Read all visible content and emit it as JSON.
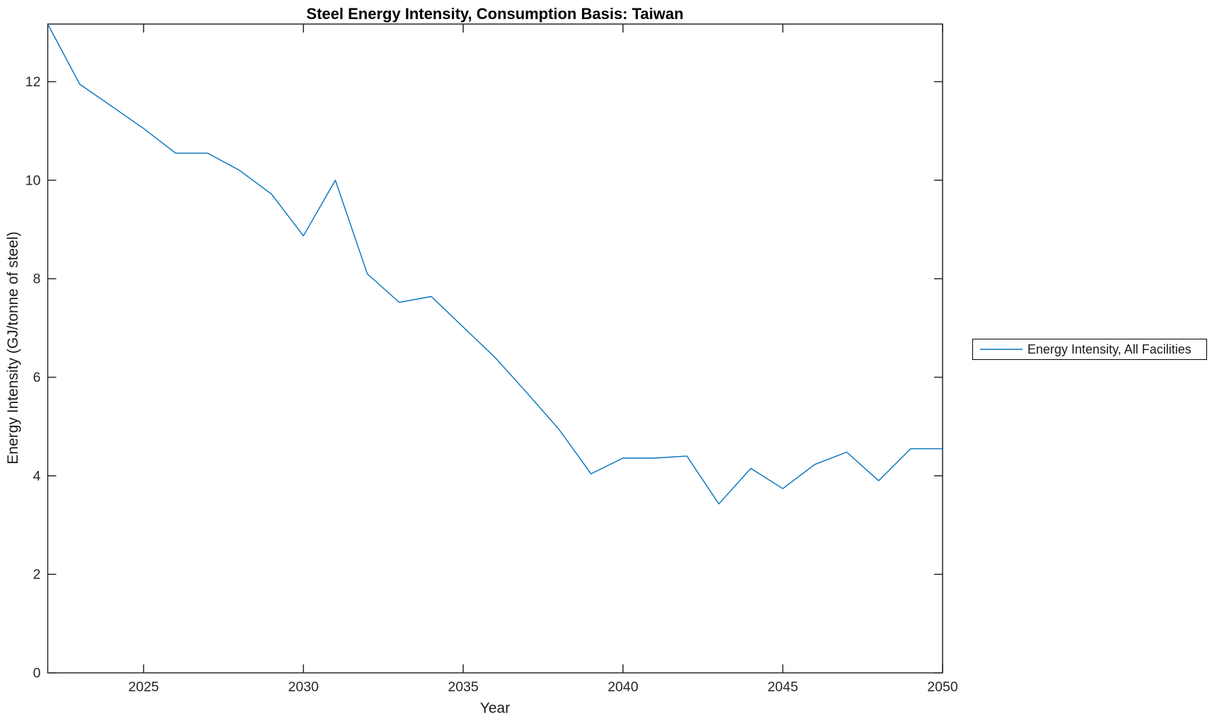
{
  "figure": {
    "background": "#ffffff"
  },
  "chart_data": {
    "type": "line",
    "title": "Steel Energy Intensity, Consumption Basis: Taiwan",
    "xlabel": "Year",
    "ylabel": "Energy Intensity (GJ/tonne of steel)",
    "grid": false,
    "box": true,
    "tick_direction": "in",
    "legend_position": "outside-right",
    "legend_entries": [
      "Energy Intensity, All Facilities"
    ],
    "xlim": [
      2022,
      2050
    ],
    "ylim": [
      0,
      13.17
    ],
    "xticks": [
      2025,
      2030,
      2035,
      2040,
      2045,
      2050
    ],
    "yticks": [
      0,
      2,
      4,
      6,
      8,
      10,
      12
    ],
    "x": [
      2022,
      2023,
      2024,
      2025,
      2026,
      2027,
      2028,
      2029,
      2030,
      2031,
      2032,
      2033,
      2034,
      2035,
      2036,
      2037,
      2038,
      2039,
      2040,
      2041,
      2042,
      2043,
      2044,
      2045,
      2046,
      2047,
      2048,
      2049,
      2050
    ],
    "series": [
      {
        "name": "Energy Intensity, All Facilities",
        "color": "#0072BD",
        "values": [
          13.17,
          11.95,
          11.5,
          11.05,
          10.55,
          10.55,
          10.2,
          9.72,
          8.87,
          10.0,
          8.1,
          7.52,
          7.64,
          7.02,
          6.4,
          5.68,
          4.94,
          4.04,
          4.36,
          4.36,
          4.4,
          3.43,
          4.15,
          3.74,
          4.23,
          4.48,
          3.9,
          4.55,
          4.55
        ]
      }
    ],
    "colors": {
      "line": "#0072BD",
      "axis": "#262626",
      "tick_text": "#262626",
      "title_text": "#000000"
    }
  }
}
